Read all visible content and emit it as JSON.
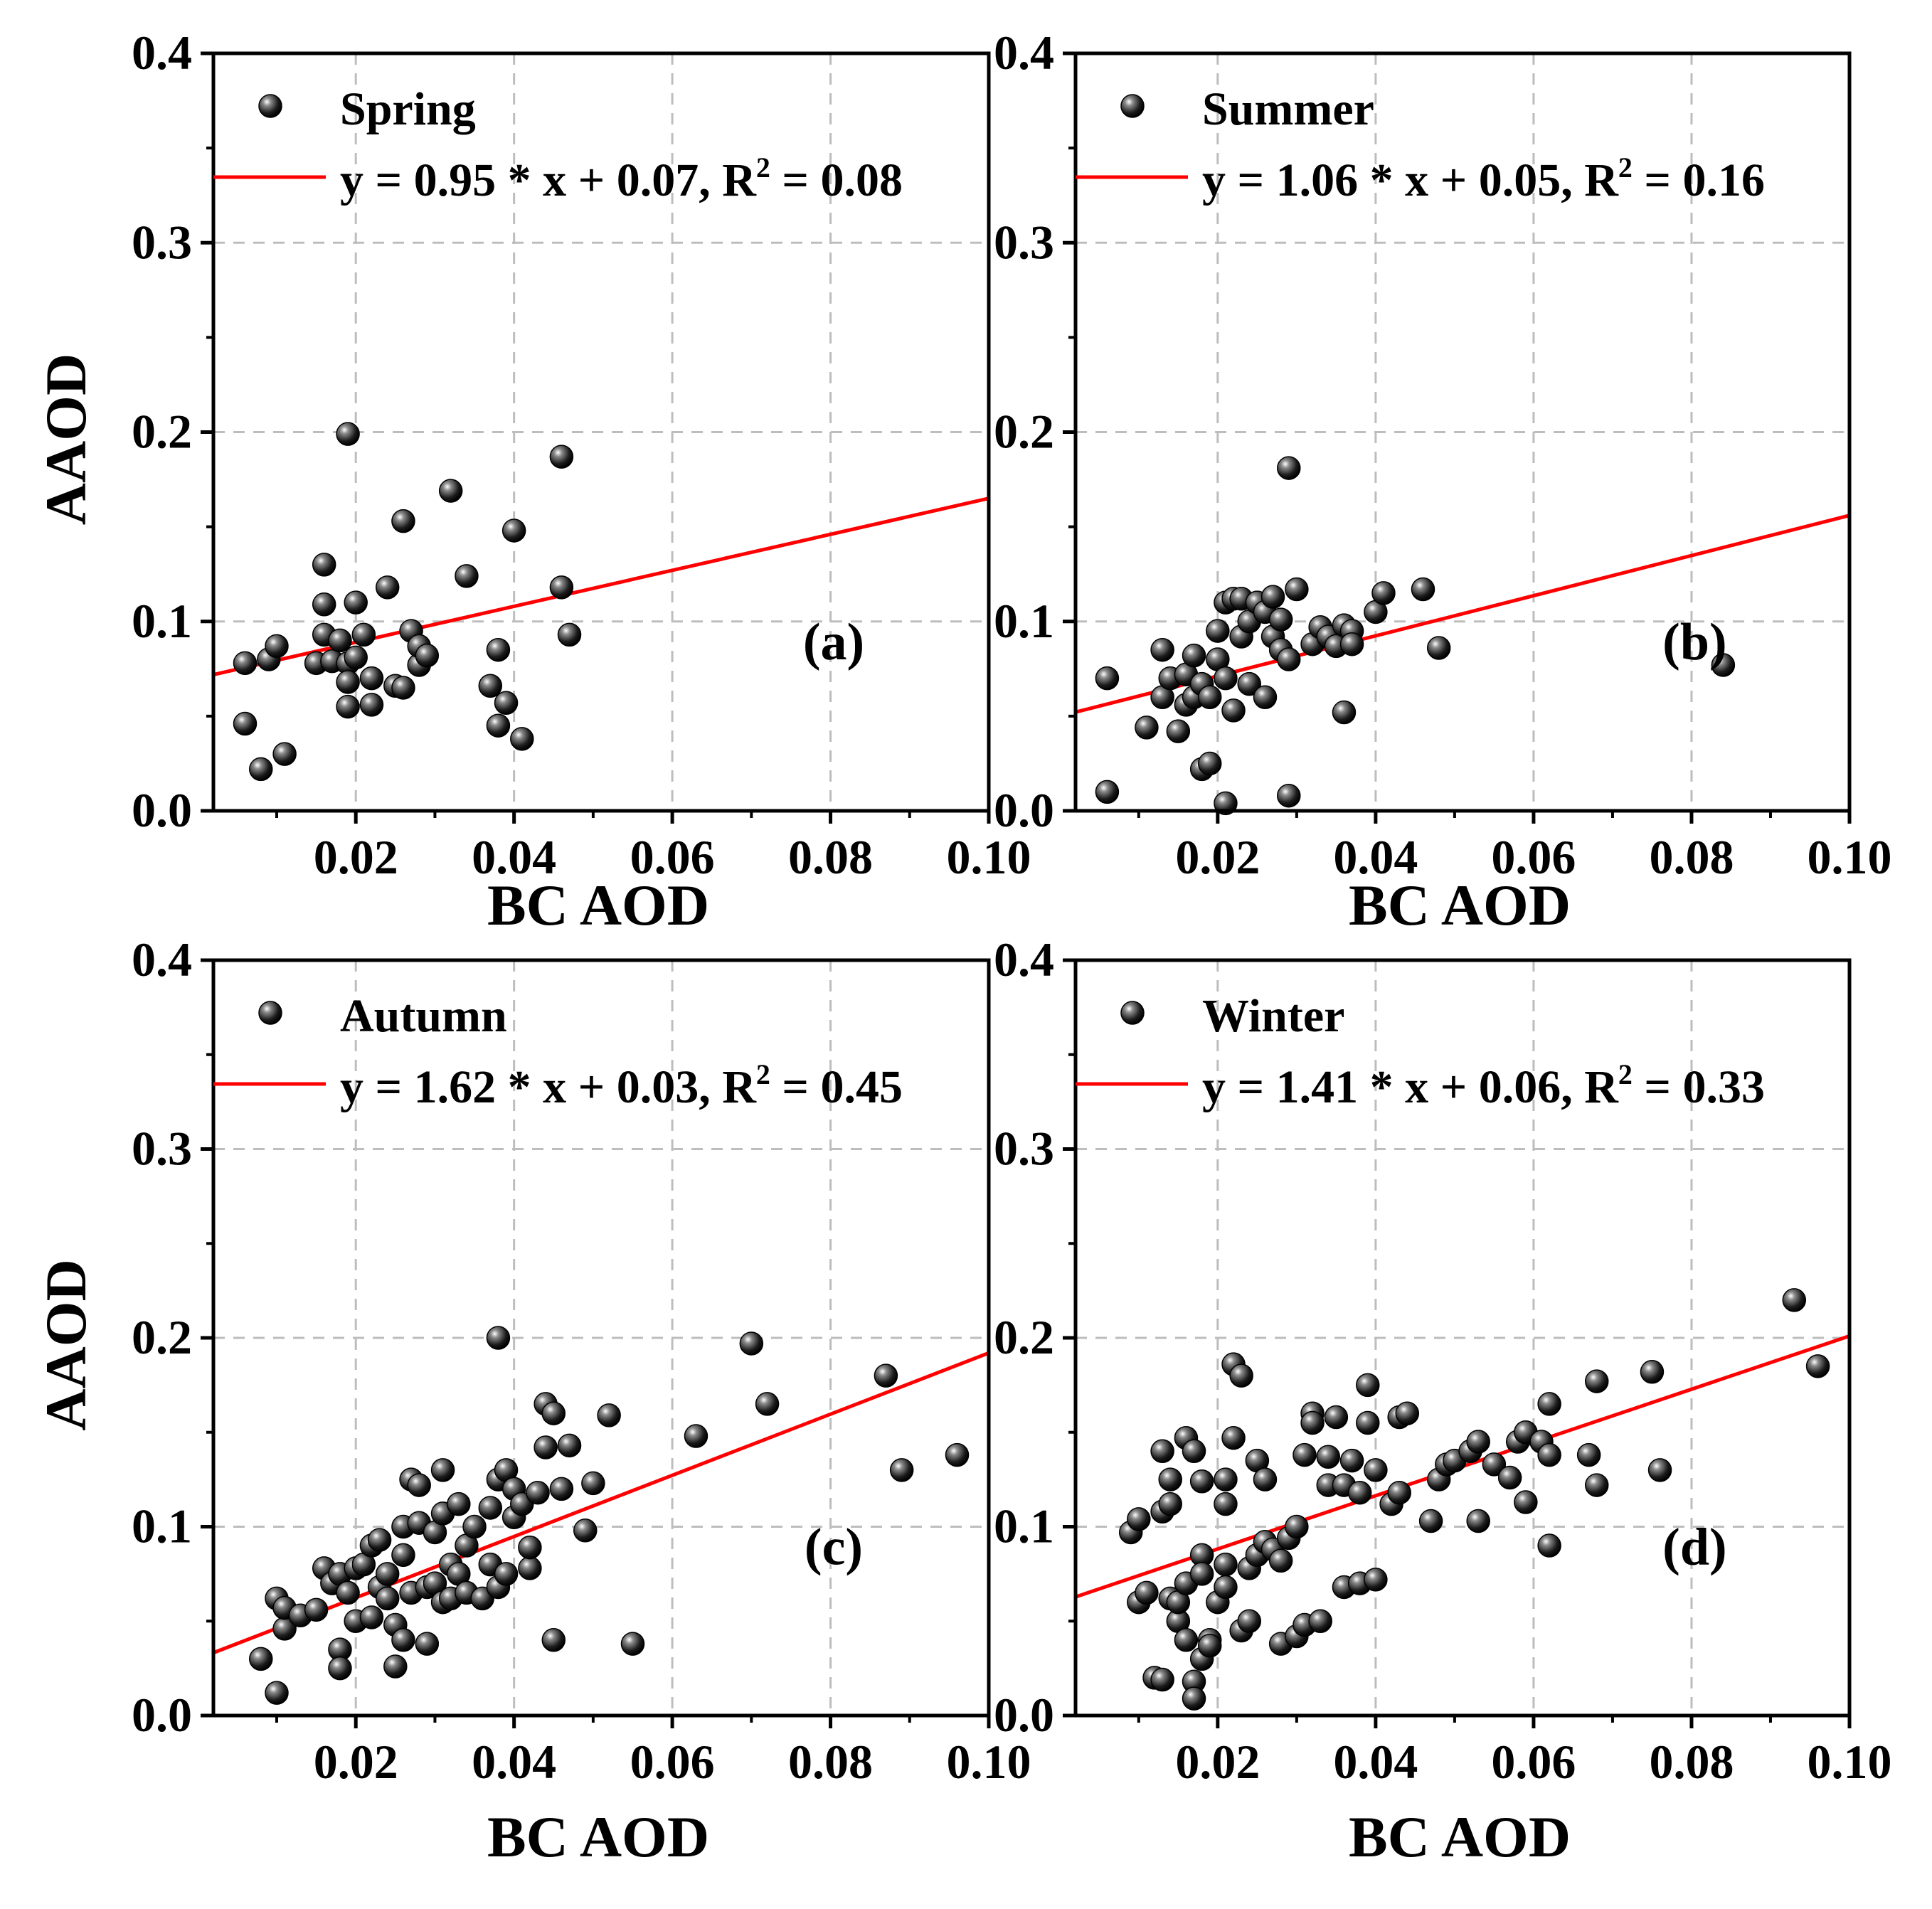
{
  "chart_data": [
    {
      "type": "scatter",
      "season": "Spring",
      "panel_label": "(a)",
      "fit_label": "y = 0.95 * x + 0.07, R",
      "r2_value": "0.08",
      "fit": {
        "slope": 0.95,
        "intercept": 0.07
      },
      "xlabel": "BC AOD",
      "ylabel": "AAOD",
      "xlim": [
        0.002,
        0.1
      ],
      "ylim": [
        0.0,
        0.4
      ],
      "xticks": [
        "0.02",
        "0.04",
        "0.06",
        "0.08",
        "0.10"
      ],
      "yticks": [
        "0.0",
        "0.1",
        "0.2",
        "0.3",
        "0.4"
      ],
      "points": [
        [
          0.006,
          0.078
        ],
        [
          0.006,
          0.046
        ],
        [
          0.008,
          0.022
        ],
        [
          0.009,
          0.08
        ],
        [
          0.01,
          0.087
        ],
        [
          0.011,
          0.03
        ],
        [
          0.015,
          0.078
        ],
        [
          0.016,
          0.13
        ],
        [
          0.016,
          0.109
        ],
        [
          0.016,
          0.093
        ],
        [
          0.017,
          0.079
        ],
        [
          0.018,
          0.09
        ],
        [
          0.019,
          0.199
        ],
        [
          0.019,
          0.078
        ],
        [
          0.019,
          0.068
        ],
        [
          0.019,
          0.055
        ],
        [
          0.02,
          0.11
        ],
        [
          0.02,
          0.081
        ],
        [
          0.021,
          0.093
        ],
        [
          0.022,
          0.056
        ],
        [
          0.022,
          0.07
        ],
        [
          0.024,
          0.118
        ],
        [
          0.025,
          0.066
        ],
        [
          0.026,
          0.153
        ],
        [
          0.026,
          0.065
        ],
        [
          0.027,
          0.095
        ],
        [
          0.028,
          0.077
        ],
        [
          0.028,
          0.087
        ],
        [
          0.029,
          0.082
        ],
        [
          0.032,
          0.169
        ],
        [
          0.034,
          0.124
        ],
        [
          0.037,
          0.066
        ],
        [
          0.038,
          0.085
        ],
        [
          0.038,
          0.045
        ],
        [
          0.039,
          0.057
        ],
        [
          0.04,
          0.148
        ],
        [
          0.041,
          0.038
        ],
        [
          0.046,
          0.187
        ],
        [
          0.046,
          0.118
        ],
        [
          0.047,
          0.093
        ]
      ]
    },
    {
      "type": "scatter",
      "season": "Summer",
      "panel_label": "(b)",
      "fit_label": "y = 1.06 * x + 0.05, R",
      "r2_value": "0.16",
      "fit": {
        "slope": 1.06,
        "intercept": 0.05
      },
      "xlabel": "BC AOD",
      "ylabel": "AAOD",
      "xlim": [
        0.002,
        0.1
      ],
      "ylim": [
        0.0,
        0.4
      ],
      "xticks": [
        "0.02",
        "0.04",
        "0.06",
        "0.08",
        "0.10"
      ],
      "yticks": [
        "0.0",
        "0.1",
        "0.2",
        "0.3",
        "0.4"
      ],
      "points": [
        [
          0.006,
          0.07
        ],
        [
          0.006,
          0.01
        ],
        [
          0.011,
          0.044
        ],
        [
          0.013,
          0.06
        ],
        [
          0.013,
          0.085
        ],
        [
          0.014,
          0.07
        ],
        [
          0.015,
          0.042
        ],
        [
          0.016,
          0.072
        ],
        [
          0.016,
          0.056
        ],
        [
          0.017,
          0.082
        ],
        [
          0.017,
          0.06
        ],
        [
          0.018,
          0.067
        ],
        [
          0.018,
          0.022
        ],
        [
          0.019,
          0.025
        ],
        [
          0.019,
          0.06
        ],
        [
          0.02,
          0.08
        ],
        [
          0.02,
          0.095
        ],
        [
          0.021,
          0.11
        ],
        [
          0.021,
          0.07
        ],
        [
          0.021,
          0.004
        ],
        [
          0.022,
          0.112
        ],
        [
          0.022,
          0.053
        ],
        [
          0.023,
          0.112
        ],
        [
          0.023,
          0.092
        ],
        [
          0.024,
          0.067
        ],
        [
          0.024,
          0.1
        ],
        [
          0.025,
          0.11
        ],
        [
          0.026,
          0.06
        ],
        [
          0.026,
          0.105
        ],
        [
          0.027,
          0.113
        ],
        [
          0.027,
          0.092
        ],
        [
          0.028,
          0.085
        ],
        [
          0.028,
          0.101
        ],
        [
          0.029,
          0.181
        ],
        [
          0.029,
          0.08
        ],
        [
          0.029,
          0.008
        ],
        [
          0.03,
          0.117
        ],
        [
          0.032,
          0.088
        ],
        [
          0.033,
          0.097
        ],
        [
          0.034,
          0.092
        ],
        [
          0.035,
          0.087
        ],
        [
          0.036,
          0.098
        ],
        [
          0.036,
          0.052
        ],
        [
          0.037,
          0.095
        ],
        [
          0.037,
          0.088
        ],
        [
          0.04,
          0.105
        ],
        [
          0.041,
          0.115
        ],
        [
          0.046,
          0.117
        ],
        [
          0.048,
          0.086
        ],
        [
          0.084,
          0.077
        ]
      ]
    },
    {
      "type": "scatter",
      "season": "Autumn",
      "panel_label": "(c)",
      "fit_label": "y = 1.62 * x + 0.03, R",
      "r2_value": "0.45",
      "fit": {
        "slope": 1.62,
        "intercept": 0.03
      },
      "xlabel": "BC AOD",
      "ylabel": "AAOD",
      "xlim": [
        0.002,
        0.1
      ],
      "ylim": [
        0.0,
        0.4
      ],
      "xticks": [
        "0.02",
        "0.04",
        "0.06",
        "0.08",
        "0.10"
      ],
      "yticks": [
        "0.0",
        "0.1",
        "0.2",
        "0.3",
        "0.4"
      ],
      "points": [
        [
          0.008,
          0.03
        ],
        [
          0.01,
          0.012
        ],
        [
          0.01,
          0.062
        ],
        [
          0.011,
          0.046
        ],
        [
          0.011,
          0.057
        ],
        [
          0.013,
          0.053
        ],
        [
          0.015,
          0.056
        ],
        [
          0.016,
          0.078
        ],
        [
          0.017,
          0.07
        ],
        [
          0.018,
          0.075
        ],
        [
          0.018,
          0.035
        ],
        [
          0.018,
          0.025
        ],
        [
          0.019,
          0.065
        ],
        [
          0.02,
          0.05
        ],
        [
          0.02,
          0.078
        ],
        [
          0.021,
          0.08
        ],
        [
          0.022,
          0.09
        ],
        [
          0.022,
          0.052
        ],
        [
          0.023,
          0.093
        ],
        [
          0.023,
          0.068
        ],
        [
          0.024,
          0.075
        ],
        [
          0.024,
          0.062
        ],
        [
          0.025,
          0.048
        ],
        [
          0.025,
          0.026
        ],
        [
          0.026,
          0.04
        ],
        [
          0.026,
          0.085
        ],
        [
          0.026,
          0.1
        ],
        [
          0.027,
          0.125
        ],
        [
          0.027,
          0.065
        ],
        [
          0.028,
          0.102
        ],
        [
          0.028,
          0.122
        ],
        [
          0.029,
          0.038
        ],
        [
          0.029,
          0.068
        ],
        [
          0.03,
          0.07
        ],
        [
          0.03,
          0.097
        ],
        [
          0.031,
          0.06
        ],
        [
          0.031,
          0.107
        ],
        [
          0.031,
          0.13
        ],
        [
          0.032,
          0.062
        ],
        [
          0.032,
          0.08
        ],
        [
          0.033,
          0.075
        ],
        [
          0.033,
          0.112
        ],
        [
          0.034,
          0.065
        ],
        [
          0.034,
          0.09
        ],
        [
          0.035,
          0.1
        ],
        [
          0.036,
          0.062
        ],
        [
          0.037,
          0.11
        ],
        [
          0.037,
          0.08
        ],
        [
          0.038,
          0.125
        ],
        [
          0.038,
          0.2
        ],
        [
          0.038,
          0.068
        ],
        [
          0.039,
          0.13
        ],
        [
          0.039,
          0.075
        ],
        [
          0.04,
          0.105
        ],
        [
          0.04,
          0.12
        ],
        [
          0.041,
          0.112
        ],
        [
          0.042,
          0.078
        ],
        [
          0.042,
          0.089
        ],
        [
          0.043,
          0.118
        ],
        [
          0.044,
          0.165
        ],
        [
          0.044,
          0.142
        ],
        [
          0.045,
          0.16
        ],
        [
          0.045,
          0.04
        ],
        [
          0.046,
          0.12
        ],
        [
          0.047,
          0.143
        ],
        [
          0.049,
          0.098
        ],
        [
          0.05,
          0.123
        ],
        [
          0.052,
          0.159
        ],
        [
          0.055,
          0.038
        ],
        [
          0.063,
          0.148
        ],
        [
          0.07,
          0.197
        ],
        [
          0.072,
          0.165
        ],
        [
          0.087,
          0.18
        ],
        [
          0.089,
          0.13
        ],
        [
          0.096,
          0.138
        ]
      ]
    },
    {
      "type": "scatter",
      "season": "Winter",
      "panel_label": "(d)",
      "fit_label": "y = 1.41 * x + 0.06, R",
      "r2_value": "0.33",
      "fit": {
        "slope": 1.41,
        "intercept": 0.06
      },
      "xlabel": "BC AOD",
      "ylabel": "AAOD",
      "xlim": [
        0.002,
        0.1
      ],
      "ylim": [
        0.0,
        0.4
      ],
      "xticks": [
        "0.02",
        "0.04",
        "0.06",
        "0.08",
        "0.10"
      ],
      "yticks": [
        "0.0",
        "0.1",
        "0.2",
        "0.3",
        "0.4"
      ],
      "points": [
        [
          0.009,
          0.097
        ],
        [
          0.01,
          0.104
        ],
        [
          0.01,
          0.06
        ],
        [
          0.011,
          0.065
        ],
        [
          0.012,
          0.02
        ],
        [
          0.013,
          0.019
        ],
        [
          0.013,
          0.108
        ],
        [
          0.013,
          0.14
        ],
        [
          0.014,
          0.125
        ],
        [
          0.014,
          0.112
        ],
        [
          0.014,
          0.062
        ],
        [
          0.015,
          0.05
        ],
        [
          0.015,
          0.06
        ],
        [
          0.016,
          0.04
        ],
        [
          0.016,
          0.07
        ],
        [
          0.016,
          0.147
        ],
        [
          0.017,
          0.14
        ],
        [
          0.017,
          0.018
        ],
        [
          0.017,
          0.009
        ],
        [
          0.018,
          0.124
        ],
        [
          0.018,
          0.085
        ],
        [
          0.018,
          0.075
        ],
        [
          0.018,
          0.03
        ],
        [
          0.019,
          0.04
        ],
        [
          0.019,
          0.037
        ],
        [
          0.02,
          0.06
        ],
        [
          0.021,
          0.112
        ],
        [
          0.021,
          0.08
        ],
        [
          0.021,
          0.068
        ],
        [
          0.021,
          0.125
        ],
        [
          0.022,
          0.147
        ],
        [
          0.022,
          0.186
        ],
        [
          0.023,
          0.18
        ],
        [
          0.023,
          0.045
        ],
        [
          0.024,
          0.05
        ],
        [
          0.024,
          0.078
        ],
        [
          0.025,
          0.135
        ],
        [
          0.025,
          0.085
        ],
        [
          0.026,
          0.125
        ],
        [
          0.026,
          0.092
        ],
        [
          0.027,
          0.088
        ],
        [
          0.028,
          0.038
        ],
        [
          0.028,
          0.082
        ],
        [
          0.029,
          0.094
        ],
        [
          0.03,
          0.1
        ],
        [
          0.03,
          0.042
        ],
        [
          0.031,
          0.138
        ],
        [
          0.031,
          0.048
        ],
        [
          0.032,
          0.16
        ],
        [
          0.032,
          0.155
        ],
        [
          0.033,
          0.05
        ],
        [
          0.034,
          0.137
        ],
        [
          0.034,
          0.122
        ],
        [
          0.035,
          0.158
        ],
        [
          0.036,
          0.122
        ],
        [
          0.036,
          0.068
        ],
        [
          0.037,
          0.135
        ],
        [
          0.038,
          0.118
        ],
        [
          0.038,
          0.07
        ],
        [
          0.039,
          0.155
        ],
        [
          0.039,
          0.175
        ],
        [
          0.04,
          0.072
        ],
        [
          0.04,
          0.13
        ],
        [
          0.042,
          0.112
        ],
        [
          0.043,
          0.158
        ],
        [
          0.043,
          0.118
        ],
        [
          0.044,
          0.16
        ],
        [
          0.047,
          0.103
        ],
        [
          0.048,
          0.125
        ],
        [
          0.049,
          0.133
        ],
        [
          0.05,
          0.135
        ],
        [
          0.052,
          0.14
        ],
        [
          0.053,
          0.145
        ],
        [
          0.053,
          0.103
        ],
        [
          0.055,
          0.133
        ],
        [
          0.057,
          0.126
        ],
        [
          0.058,
          0.145
        ],
        [
          0.059,
          0.113
        ],
        [
          0.059,
          0.15
        ],
        [
          0.061,
          0.145
        ],
        [
          0.062,
          0.138
        ],
        [
          0.062,
          0.165
        ],
        [
          0.062,
          0.09
        ],
        [
          0.067,
          0.138
        ],
        [
          0.068,
          0.177
        ],
        [
          0.068,
          0.122
        ],
        [
          0.075,
          0.182
        ],
        [
          0.076,
          0.13
        ],
        [
          0.093,
          0.22
        ],
        [
          0.096,
          0.185
        ]
      ]
    }
  ],
  "colors": {
    "fit_line": "#ff0000",
    "point": "#1a1a1a",
    "grid": "#bdbdbd",
    "axis": "#000000"
  }
}
